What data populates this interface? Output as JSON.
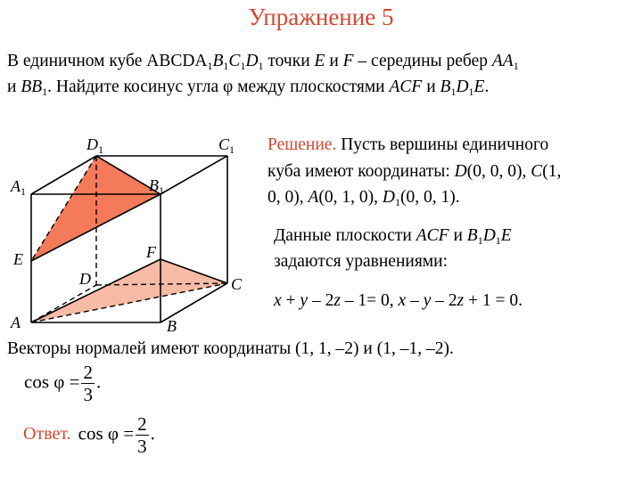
{
  "title": "Упражнение 5",
  "problem": {
    "line1": [
      [
        "В единичном кубе ",
        ""
      ],
      [
        "ABCDA",
        ""
      ],
      [
        "1",
        "sub"
      ],
      [
        "B",
        "i"
      ],
      [
        "1",
        "sub"
      ],
      [
        "C",
        "i"
      ],
      [
        "1",
        "sub"
      ],
      [
        "D",
        "i"
      ],
      [
        "1",
        "sub"
      ],
      [
        " точки ",
        ""
      ],
      [
        "E",
        "i"
      ],
      [
        " и ",
        ""
      ],
      [
        "F",
        "i"
      ],
      [
        " – середины ребер ",
        ""
      ],
      [
        "AA",
        "i"
      ],
      [
        "1",
        "sub"
      ]
    ],
    "line2": [
      [
        "и ",
        ""
      ],
      [
        "BB",
        "i"
      ],
      [
        "1",
        "sub"
      ],
      [
        ". Найдите косинус угла φ между плоскостями ",
        ""
      ],
      [
        "ACF",
        "i"
      ],
      [
        " и ",
        ""
      ],
      [
        "B",
        "i"
      ],
      [
        "1",
        "sub"
      ],
      [
        "D",
        "i"
      ],
      [
        "1",
        "sub"
      ],
      [
        "E",
        "i"
      ],
      [
        ".",
        ""
      ]
    ]
  },
  "solution": {
    "line1": [
      [
        "Решение.",
        "red"
      ],
      [
        " Пусть вершины единичного",
        ""
      ]
    ],
    "line2": [
      [
        "куба имеют координаты: ",
        ""
      ],
      [
        "D",
        "i"
      ],
      [
        "(0, 0, 0), ",
        ""
      ],
      [
        "C",
        "i"
      ],
      [
        "(1,",
        ""
      ]
    ],
    "line3": [
      [
        "0, 0), ",
        ""
      ],
      [
        "A",
        "i"
      ],
      [
        "(0, 1, 0), ",
        ""
      ],
      [
        "D",
        "i"
      ],
      [
        "1",
        "sub"
      ],
      [
        "(0, 0, 1).",
        ""
      ]
    ],
    "line4": [
      [
        "Данные плоскости ",
        ""
      ],
      [
        "ACF",
        "i"
      ],
      [
        " и ",
        ""
      ],
      [
        "B",
        "i"
      ],
      [
        "1",
        "sub"
      ],
      [
        "D",
        "i"
      ],
      [
        "1",
        "sub"
      ],
      [
        "E",
        "i"
      ]
    ],
    "line5": [
      [
        "задаются уравнениями:",
        ""
      ]
    ],
    "line6": [
      [
        "x",
        "i"
      ],
      [
        " + ",
        ""
      ],
      [
        "y",
        "i"
      ],
      [
        " – 2",
        ""
      ],
      [
        "z",
        "i"
      ],
      [
        " – 1= 0, ",
        ""
      ],
      [
        "x",
        "i"
      ],
      [
        " – ",
        ""
      ],
      [
        "y",
        "i"
      ],
      [
        " – 2",
        ""
      ],
      [
        "z",
        "i"
      ],
      [
        " + 1 = 0.",
        ""
      ]
    ],
    "line7": [
      [
        "Векторы нормалей имеют координаты (1, 1, –2) и (1, –1, –2).",
        ""
      ]
    ]
  },
  "formula": {
    "lhs": "cos φ =",
    "num": "2",
    "den": "3",
    "end": "."
  },
  "answer": {
    "label": "Ответ.",
    "lhs": "cos φ =",
    "num": "2",
    "den": "3",
    "end": "."
  },
  "figure": {
    "labels": {
      "A": "A",
      "B": "B",
      "C": "C",
      "D": "D",
      "A1": "A",
      "B1": "B",
      "C1": "C",
      "D1": "D",
      "E": "E",
      "F": "F",
      "sub": "1"
    },
    "colors": {
      "upper_section": "#f47a5a",
      "lower_section": "#f6bba5",
      "edge": "#000000"
    }
  },
  "colors": {
    "accent": "#d9452f"
  }
}
